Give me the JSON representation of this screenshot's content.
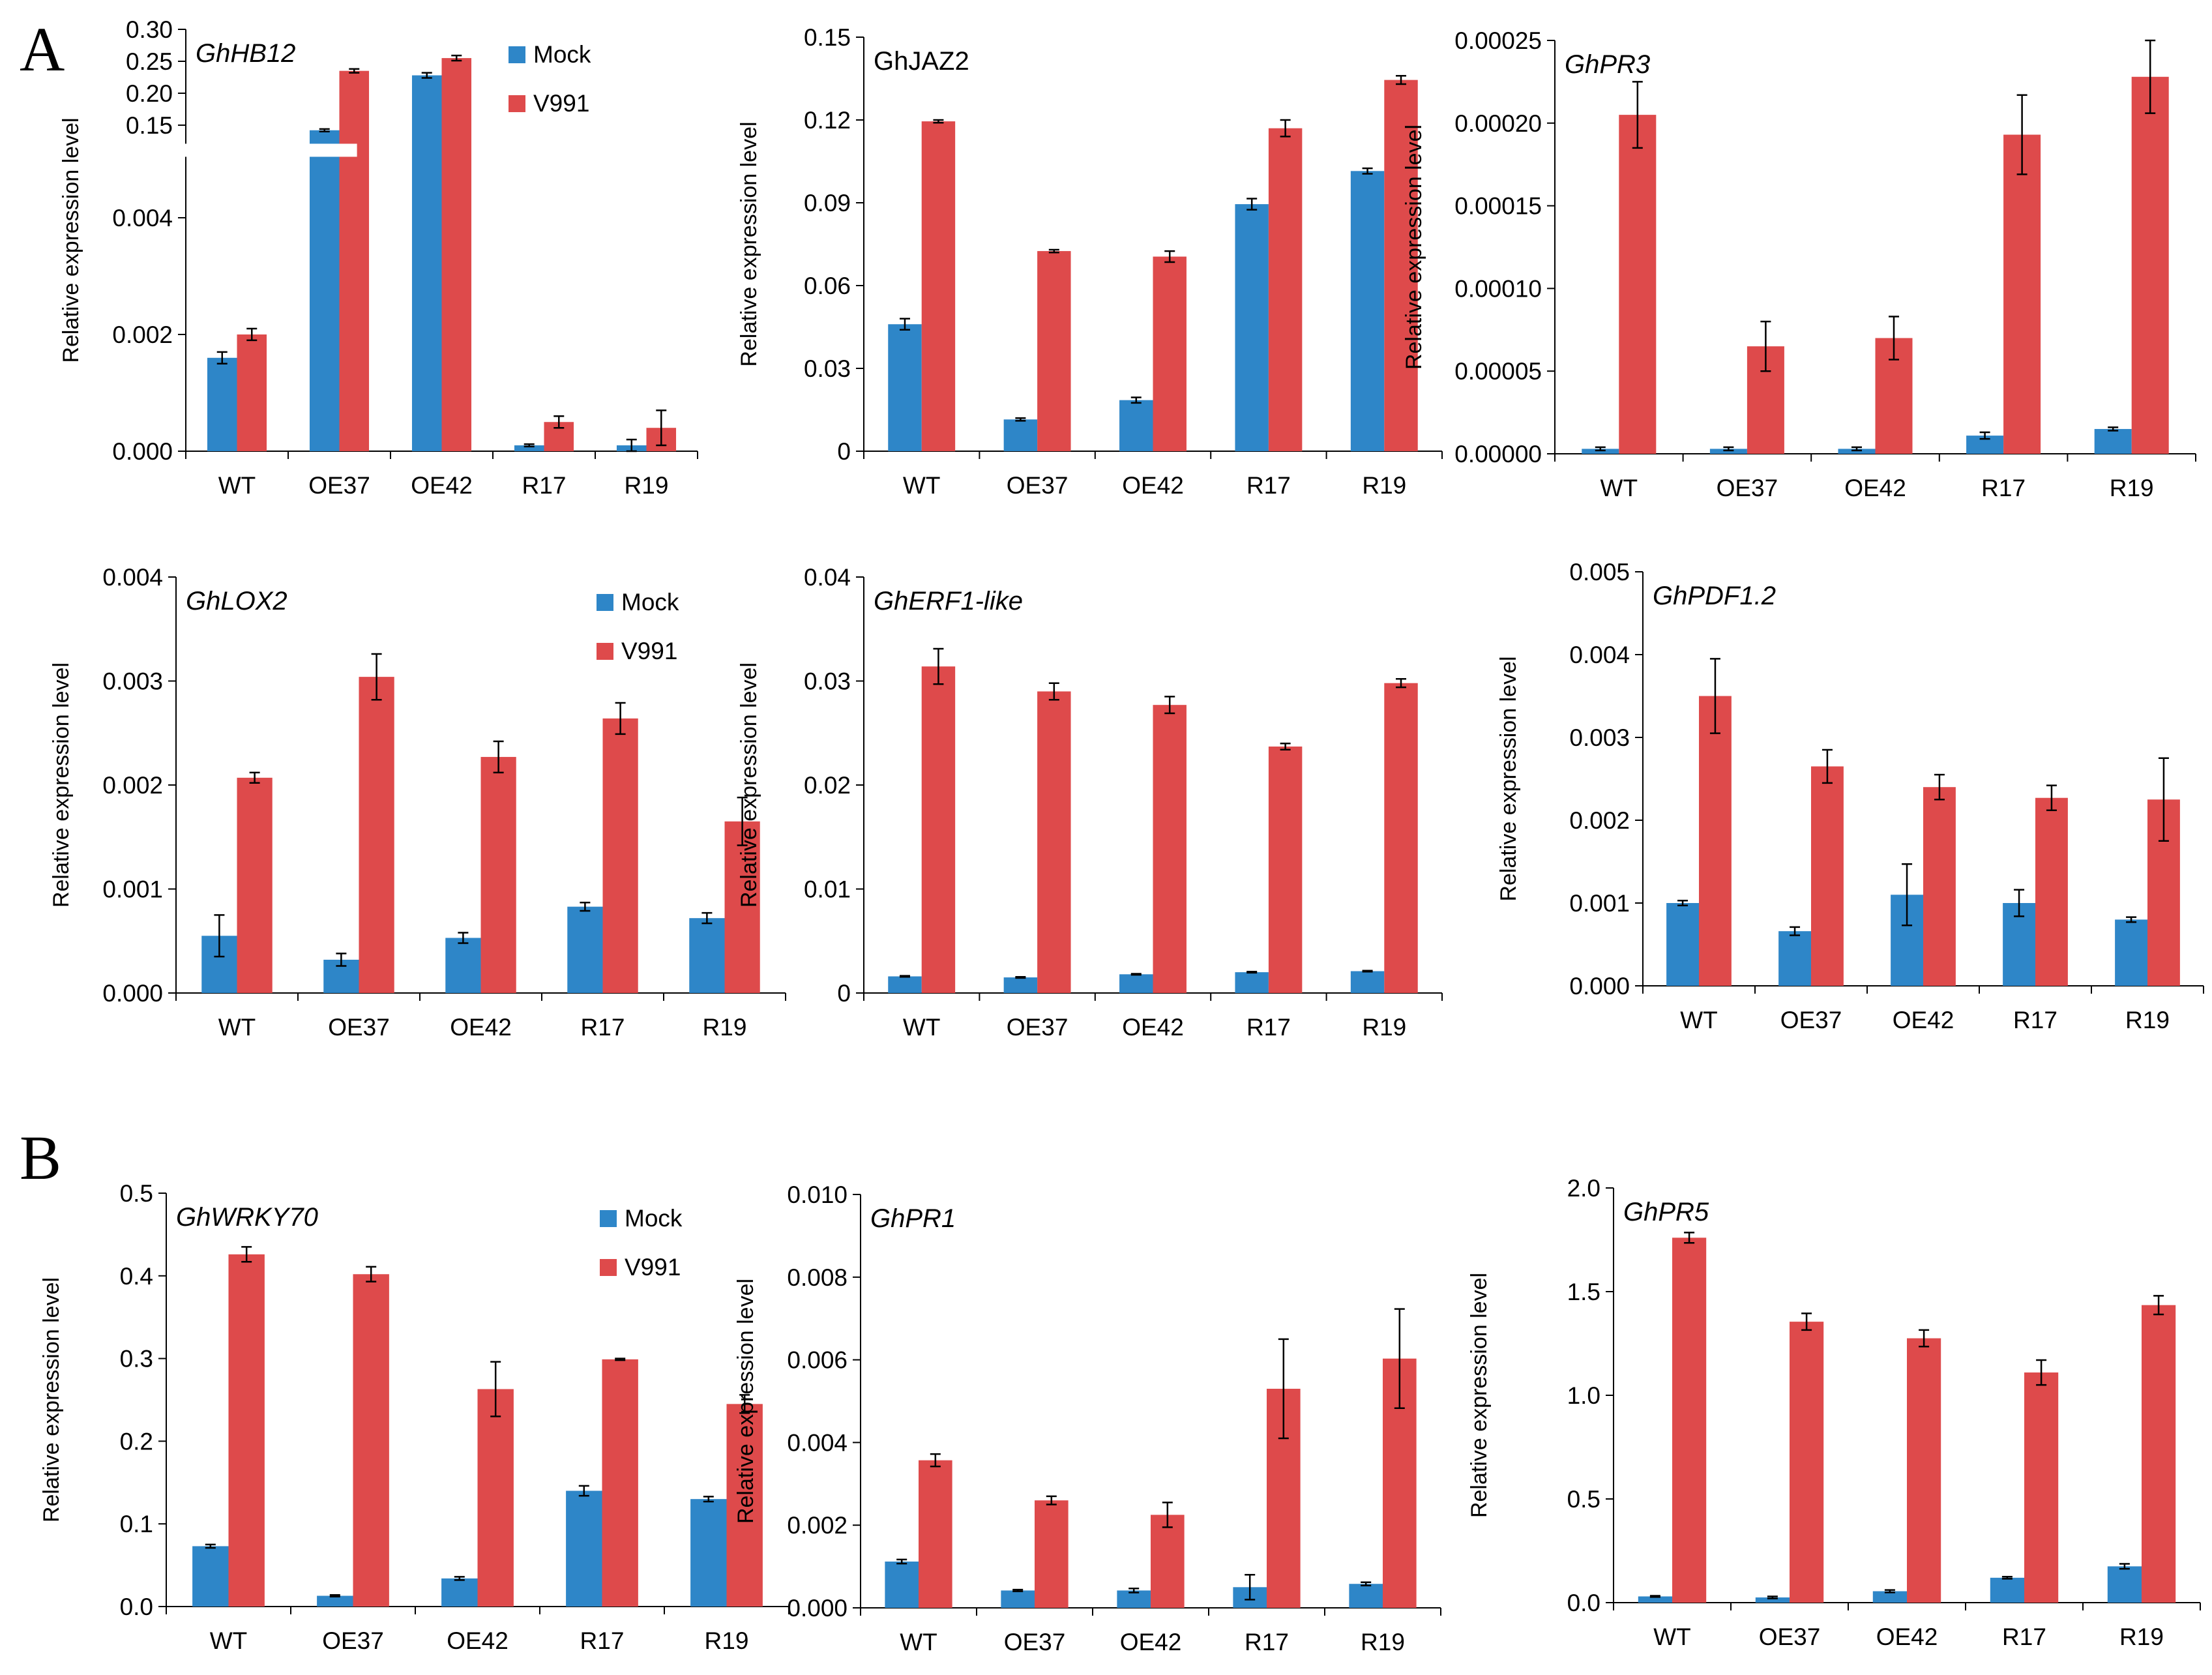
{
  "figure": {
    "panel_letters": [
      "A",
      "B"
    ]
  },
  "colors": {
    "mock": "#2e86c8",
    "v991": "#de4a4b"
  },
  "chart_data": [
    {
      "type": "bar",
      "panel": "A",
      "title": "GhHB12",
      "title_italic": true,
      "categories": [
        "WT",
        "OE37",
        "OE42",
        "R17",
        "R19"
      ],
      "ylabel": "Relative expression level",
      "legend": [
        "Mock",
        "V991"
      ],
      "legend_position": "top-right",
      "axis_break": true,
      "y_lower": {
        "ylim": [
          0,
          0.005
        ],
        "ticks": [
          "0.000",
          "0.002",
          "0.004"
        ]
      },
      "y_upper": {
        "ylim": [
          0.125,
          0.3
        ],
        "ticks": [
          "0.15",
          "0.20",
          "0.25",
          "0.30"
        ]
      },
      "series": [
        {
          "name": "Mock",
          "values": [
            0.0016,
            0.142,
            0.228,
            0.0001,
            0.0001
          ],
          "errors": [
            0.0001,
            0.002,
            0.004,
            2e-05,
            0.0001
          ]
        },
        {
          "name": "V991",
          "values": [
            0.002,
            0.235,
            0.255,
            0.0005,
            0.0004
          ],
          "errors": [
            0.0001,
            0.003,
            0.004,
            0.0001,
            0.0003
          ]
        }
      ]
    },
    {
      "type": "bar",
      "panel": "A",
      "title": "GhJAZ2",
      "title_italic": false,
      "categories": [
        "WT",
        "OE37",
        "OE42",
        "R17",
        "R19"
      ],
      "ylabel": "Relative expression level",
      "ylim": [
        0,
        0.15
      ],
      "yticks": [
        "0",
        "0.03",
        "0.06",
        "0.09",
        "0.12",
        "0.15"
      ],
      "series": [
        {
          "name": "Mock",
          "values": [
            0.046,
            0.0115,
            0.0185,
            0.0895,
            0.1015
          ],
          "errors": [
            0.002,
            0.0005,
            0.001,
            0.002,
            0.001
          ]
        },
        {
          "name": "V991",
          "values": [
            0.1195,
            0.0725,
            0.0705,
            0.117,
            0.1345
          ],
          "errors": [
            0.0005,
            0.0005,
            0.002,
            0.003,
            0.0015
          ]
        }
      ]
    },
    {
      "type": "bar",
      "panel": "A",
      "title": "GhPR3",
      "title_italic": true,
      "categories": [
        "WT",
        "OE37",
        "OE42",
        "R17",
        "R19"
      ],
      "ylabel": "Relative expression level",
      "ylim": [
        0,
        0.00025
      ],
      "yticks": [
        "0.00000",
        "0.00005",
        "0.00010",
        "0.00015",
        "0.00020",
        "0.00025"
      ],
      "series": [
        {
          "name": "Mock",
          "values": [
            3e-06,
            3e-06,
            3e-06,
            1.1e-05,
            1.5e-05
          ],
          "errors": [
            1e-06,
            1e-06,
            1e-06,
            2e-06,
            1e-06
          ]
        },
        {
          "name": "V991",
          "values": [
            0.000205,
            6.5e-05,
            7e-05,
            0.000193,
            0.000228
          ],
          "errors": [
            2e-05,
            1.5e-05,
            1.3e-05,
            2.4e-05,
            2.2e-05
          ]
        }
      ]
    },
    {
      "type": "bar",
      "panel": "A",
      "title": "GhLOX2",
      "title_italic": true,
      "categories": [
        "WT",
        "OE37",
        "OE42",
        "R17",
        "R19"
      ],
      "ylabel": "Relative expression level",
      "legend": [
        "Mock",
        "V991"
      ],
      "legend_position": "top-right",
      "ylim": [
        0,
        0.004
      ],
      "yticks": [
        "0.000",
        "0.001",
        "0.002",
        "0.003",
        "0.004"
      ],
      "series": [
        {
          "name": "Mock",
          "values": [
            0.00055,
            0.00032,
            0.00053,
            0.00083,
            0.00072
          ],
          "errors": [
            0.0002,
            6e-05,
            5e-05,
            4e-05,
            5e-05
          ]
        },
        {
          "name": "V991",
          "values": [
            0.00207,
            0.00304,
            0.00227,
            0.00264,
            0.00165
          ],
          "errors": [
            5e-05,
            0.00022,
            0.00015,
            0.00015,
            0.00023
          ]
        }
      ]
    },
    {
      "type": "bar",
      "panel": "A",
      "title": "GhERF1-like",
      "title_italic": true,
      "categories": [
        "WT",
        "OE37",
        "OE42",
        "R17",
        "R19"
      ],
      "ylabel": "Relative expression level",
      "ylim": [
        0,
        0.04
      ],
      "yticks": [
        "0",
        "0.01",
        "0.02",
        "0.03",
        "0.04"
      ],
      "series": [
        {
          "name": "Mock",
          "values": [
            0.0016,
            0.0015,
            0.0018,
            0.002,
            0.0021
          ],
          "errors": [
            5e-05,
            5e-05,
            5e-05,
            5e-05,
            5e-05
          ]
        },
        {
          "name": "V991",
          "values": [
            0.0314,
            0.029,
            0.0277,
            0.0237,
            0.0298
          ],
          "errors": [
            0.0017,
            0.0008,
            0.0008,
            0.0003,
            0.0004
          ]
        }
      ]
    },
    {
      "type": "bar",
      "panel": "A",
      "title": "GhPDF1.2",
      "title_italic": true,
      "categories": [
        "WT",
        "OE37",
        "OE42",
        "R17",
        "R19"
      ],
      "ylabel": "Relative expression level",
      "ylim": [
        0,
        0.005
      ],
      "yticks": [
        "0.000",
        "0.001",
        "0.002",
        "0.003",
        "0.004",
        "0.005"
      ],
      "series": [
        {
          "name": "Mock",
          "values": [
            0.001,
            0.00066,
            0.0011,
            0.001,
            0.0008
          ],
          "errors": [
            3e-05,
            5e-05,
            0.00037,
            0.00016,
            3e-05
          ]
        },
        {
          "name": "V991",
          "values": [
            0.0035,
            0.00265,
            0.0024,
            0.00227,
            0.00225
          ],
          "errors": [
            0.00045,
            0.0002,
            0.00015,
            0.00015,
            0.0005
          ]
        }
      ]
    },
    {
      "type": "bar",
      "panel": "B",
      "title": "GhWRKY70",
      "title_italic": true,
      "categories": [
        "WT",
        "OE37",
        "OE42",
        "R17",
        "R19"
      ],
      "ylabel": "Relative expression level",
      "legend": [
        "Mock",
        "V991"
      ],
      "legend_position": "top-right",
      "ylim": [
        0,
        0.5
      ],
      "yticks": [
        "0.0",
        "0.1",
        "0.2",
        "0.3",
        "0.4",
        "0.5"
      ],
      "series": [
        {
          "name": "Mock",
          "values": [
            0.073,
            0.013,
            0.034,
            0.14,
            0.13
          ],
          "errors": [
            0.002,
            0.001,
            0.002,
            0.006,
            0.003
          ]
        },
        {
          "name": "V991",
          "values": [
            0.426,
            0.402,
            0.263,
            0.299,
            0.245
          ],
          "errors": [
            0.009,
            0.009,
            0.033,
            0.001,
            0.011
          ]
        }
      ]
    },
    {
      "type": "bar",
      "panel": "B",
      "title": "GhPR1",
      "title_italic": true,
      "categories": [
        "WT",
        "OE37",
        "OE42",
        "R17",
        "R19"
      ],
      "ylabel": "Relative expression level",
      "ylim": [
        0,
        0.01
      ],
      "yticks": [
        "0.000",
        "0.002",
        "0.004",
        "0.006",
        "0.008",
        "0.010"
      ],
      "series": [
        {
          "name": "Mock",
          "values": [
            0.00112,
            0.00042,
            0.00042,
            0.0005,
            0.00058
          ],
          "errors": [
            5e-05,
            2e-05,
            5e-05,
            0.0003,
            4e-05
          ]
        },
        {
          "name": "V991",
          "values": [
            0.00357,
            0.0026,
            0.00225,
            0.0053,
            0.00603
          ],
          "errors": [
            0.00015,
            0.0001,
            0.0003,
            0.0012,
            0.0012
          ]
        }
      ]
    },
    {
      "type": "bar",
      "panel": "B",
      "title": "GhPR5",
      "title_italic": true,
      "categories": [
        "WT",
        "OE37",
        "OE42",
        "R17",
        "R19"
      ],
      "ylabel": "Relative expression level",
      "ylim": [
        0,
        2.0
      ],
      "yticks": [
        "0.0",
        "0.5",
        "1.0",
        "1.5",
        "2.0"
      ],
      "series": [
        {
          "name": "Mock",
          "values": [
            0.03,
            0.025,
            0.055,
            0.12,
            0.175
          ],
          "errors": [
            0.003,
            0.005,
            0.006,
            0.005,
            0.012
          ]
        },
        {
          "name": "V991",
          "values": [
            1.76,
            1.355,
            1.275,
            1.11,
            1.435
          ],
          "errors": [
            0.025,
            0.04,
            0.04,
            0.06,
            0.045
          ]
        }
      ]
    }
  ]
}
